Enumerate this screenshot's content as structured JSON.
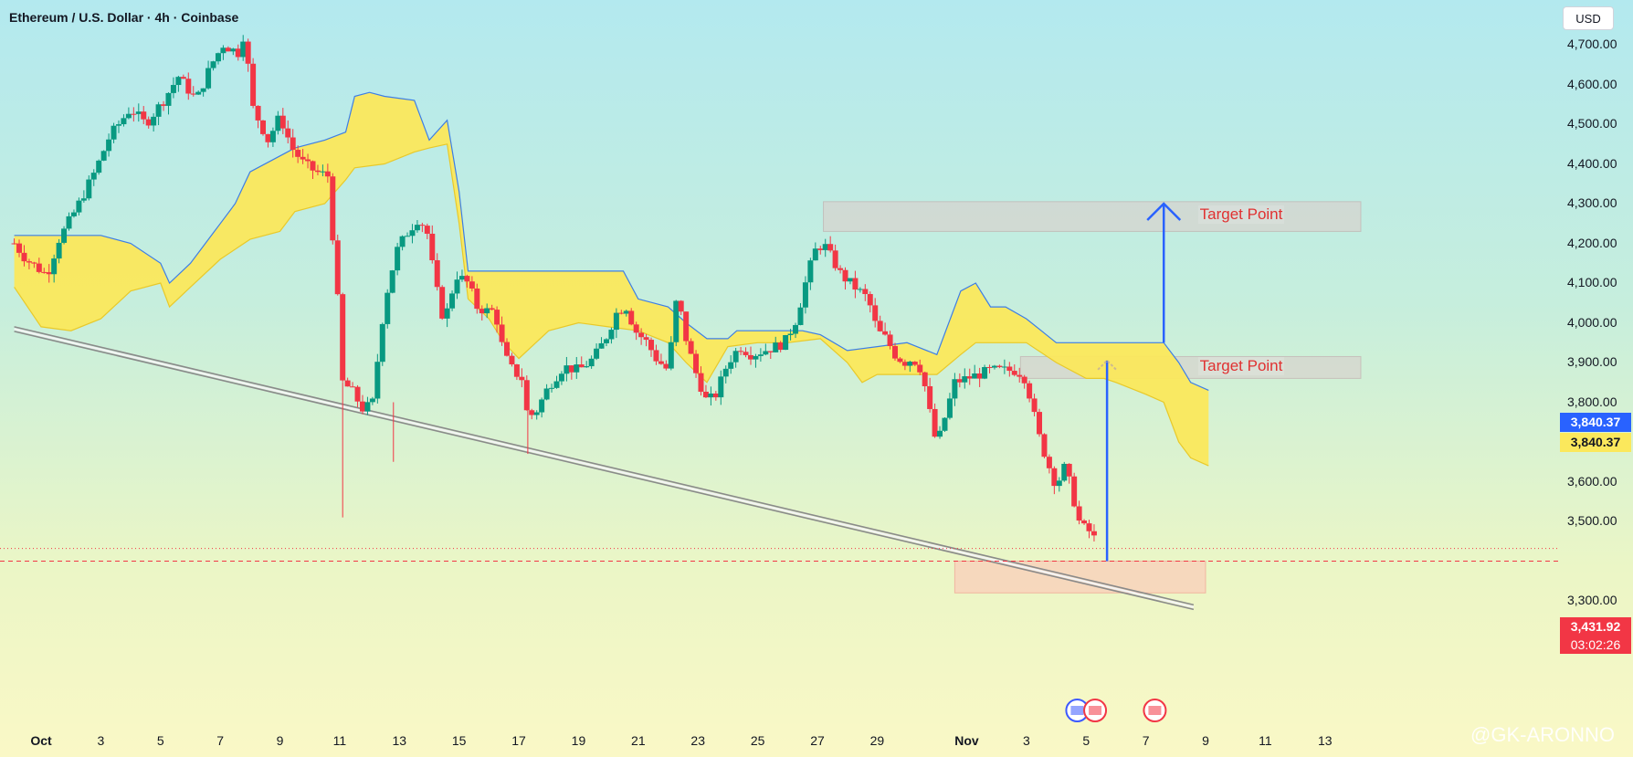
{
  "header": {
    "title": "Ethereum / U.S. Dollar · 4h · Coinbase",
    "currency": "USD"
  },
  "watermark": "@GK-ARONNO",
  "chart_data": {
    "type": "candlestick",
    "symbol": "ETH/USD",
    "interval": "4h",
    "ylim": [
      3220,
      4780
    ],
    "y_ticks": [
      "4,700.00",
      "4,600.00",
      "4,500.00",
      "4,400.00",
      "4,300.00",
      "4,200.00",
      "4,100.00",
      "4,000.00",
      "3,900.00",
      "3,800.00",
      "3,700.00",
      "3,600.00",
      "3,500.00",
      "3,300.00"
    ],
    "x_ticks": [
      "Oct",
      "3",
      "5",
      "7",
      "9",
      "11",
      "13",
      "15",
      "17",
      "19",
      "21",
      "23",
      "25",
      "27",
      "29",
      "Nov",
      "3",
      "5",
      "7",
      "9",
      "11",
      "13"
    ],
    "x_tick_days": [
      1,
      3,
      5,
      7,
      9,
      11,
      13,
      15,
      17,
      19,
      21,
      23,
      25,
      27,
      29,
      32,
      34,
      36,
      38,
      40,
      42,
      44
    ],
    "x_range_days": [
      0.1,
      45.2
    ],
    "price_path": [
      [
        0.1,
        4200
      ],
      [
        0.5,
        4160
      ],
      [
        1.2,
        4120
      ],
      [
        1.6,
        4210
      ],
      [
        2.2,
        4290
      ],
      [
        2.8,
        4380
      ],
      [
        3.3,
        4470
      ],
      [
        4.0,
        4540
      ],
      [
        4.5,
        4500
      ],
      [
        5.1,
        4560
      ],
      [
        5.6,
        4620
      ],
      [
        6.2,
        4560
      ],
      [
        6.7,
        4650
      ],
      [
        7.1,
        4700
      ],
      [
        7.6,
        4680
      ],
      [
        7.8,
        4730
      ],
      [
        8.1,
        4540
      ],
      [
        8.6,
        4460
      ],
      [
        9.0,
        4520
      ],
      [
        9.4,
        4440
      ],
      [
        9.8,
        4400
      ],
      [
        10.2,
        4380
      ],
      [
        10.6,
        4370
      ],
      [
        10.9,
        4100
      ],
      [
        11.1,
        3850
      ],
      [
        11.4,
        3830
      ],
      [
        11.8,
        3780
      ],
      [
        12.1,
        3800
      ],
      [
        12.5,
        4050
      ],
      [
        12.9,
        4180
      ],
      [
        13.2,
        4220
      ],
      [
        13.6,
        4260
      ],
      [
        13.9,
        4240
      ],
      [
        14.2,
        4100
      ],
      [
        14.5,
        4000
      ],
      [
        14.9,
        4120
      ],
      [
        15.3,
        4100
      ],
      [
        15.6,
        4040
      ],
      [
        15.9,
        4030
      ],
      [
        16.2,
        4030
      ],
      [
        16.5,
        3920
      ],
      [
        16.8,
        3880
      ],
      [
        17.1,
        3860
      ],
      [
        17.3,
        3760
      ],
      [
        17.6,
        3780
      ],
      [
        18.0,
        3840
      ],
      [
        18.5,
        3890
      ],
      [
        19.0,
        3880
      ],
      [
        19.5,
        3910
      ],
      [
        19.9,
        3960
      ],
      [
        20.3,
        4030
      ],
      [
        20.6,
        4040
      ],
      [
        20.9,
        3980
      ],
      [
        21.3,
        3950
      ],
      [
        21.6,
        3910
      ],
      [
        22.0,
        3880
      ],
      [
        22.3,
        4070
      ],
      [
        22.6,
        3960
      ],
      [
        22.9,
        3880
      ],
      [
        23.3,
        3800
      ],
      [
        23.6,
        3820
      ],
      [
        24.0,
        3900
      ],
      [
        24.4,
        3940
      ],
      [
        24.8,
        3920
      ],
      [
        25.2,
        3930
      ],
      [
        25.6,
        3940
      ],
      [
        25.9,
        3950
      ],
      [
        26.3,
        4010
      ],
      [
        26.6,
        4100
      ],
      [
        26.9,
        4180
      ],
      [
        27.2,
        4200
      ],
      [
        27.5,
        4160
      ],
      [
        27.8,
        4120
      ],
      [
        28.1,
        4100
      ],
      [
        28.4,
        4080
      ],
      [
        28.7,
        4060
      ],
      [
        29.0,
        3980
      ],
      [
        29.3,
        3960
      ],
      [
        29.6,
        3920
      ],
      [
        29.9,
        3900
      ],
      [
        30.2,
        3910
      ],
      [
        30.5,
        3880
      ],
      [
        30.8,
        3760
      ],
      [
        31.0,
        3690
      ],
      [
        31.3,
        3770
      ],
      [
        31.6,
        3850
      ],
      [
        32.0,
        3860
      ],
      [
        32.4,
        3870
      ],
      [
        32.8,
        3880
      ],
      [
        33.2,
        3880
      ],
      [
        33.6,
        3880
      ],
      [
        33.9,
        3870
      ],
      [
        34.1,
        3820
      ],
      [
        34.4,
        3720
      ],
      [
        34.7,
        3650
      ],
      [
        35.0,
        3590
      ],
      [
        35.3,
        3640
      ],
      [
        35.5,
        3580
      ],
      [
        35.8,
        3490
      ],
      [
        36.2,
        3470
      ],
      [
        36.4,
        3431.92
      ]
    ],
    "ichimoku_cloud": {
      "boundary_a": [
        [
          0.1,
          4220
        ],
        [
          1.0,
          4220
        ],
        [
          2.2,
          4220
        ],
        [
          3.0,
          4220
        ],
        [
          4.0,
          4200
        ],
        [
          5.0,
          4150
        ],
        [
          5.3,
          4100
        ],
        [
          6.0,
          4150
        ],
        [
          7.0,
          4250
        ],
        [
          7.5,
          4300
        ],
        [
          8.0,
          4380
        ],
        [
          9.0,
          4420
        ],
        [
          9.5,
          4440
        ],
        [
          10.5,
          4460
        ],
        [
          11.2,
          4480
        ],
        [
          11.5,
          4570
        ],
        [
          12.0,
          4580
        ],
        [
          12.5,
          4570
        ],
        [
          13.5,
          4560
        ],
        [
          14.0,
          4460
        ],
        [
          14.6,
          4510
        ],
        [
          15.0,
          4330
        ],
        [
          15.3,
          4130
        ],
        [
          20.5,
          4130
        ],
        [
          21.0,
          4060
        ],
        [
          22.0,
          4040
        ],
        [
          22.6,
          4000
        ],
        [
          23.3,
          3960
        ],
        [
          24.0,
          3960
        ],
        [
          24.3,
          3980
        ],
        [
          26.0,
          3980
        ],
        [
          26.5,
          3980
        ],
        [
          27.1,
          3970
        ],
        [
          28.0,
          3930
        ],
        [
          29.0,
          3940
        ],
        [
          30.0,
          3950
        ],
        [
          31.0,
          3920
        ],
        [
          31.8,
          4080
        ],
        [
          32.3,
          4100
        ],
        [
          32.8,
          4040
        ],
        [
          33.3,
          4040
        ],
        [
          34.0,
          4010
        ],
        [
          35.0,
          3950
        ],
        [
          36.0,
          3950
        ],
        [
          37.0,
          3950
        ],
        [
          38.6,
          3950
        ],
        [
          39.1,
          3900
        ],
        [
          39.5,
          3850
        ],
        [
          40.1,
          3830
        ]
      ],
      "boundary_b": [
        [
          0.1,
          4090
        ],
        [
          1.0,
          3990
        ],
        [
          2.0,
          3980
        ],
        [
          3.0,
          4010
        ],
        [
          4.0,
          4080
        ],
        [
          5.0,
          4100
        ],
        [
          5.3,
          4040
        ],
        [
          6.0,
          4090
        ],
        [
          7.0,
          4160
        ],
        [
          8.0,
          4210
        ],
        [
          9.0,
          4230
        ],
        [
          9.5,
          4280
        ],
        [
          10.5,
          4300
        ],
        [
          11.2,
          4360
        ],
        [
          11.5,
          4390
        ],
        [
          12.5,
          4400
        ],
        [
          13.5,
          4430
        ],
        [
          14.0,
          4440
        ],
        [
          14.6,
          4450
        ],
        [
          15.0,
          4250
        ],
        [
          15.3,
          4060
        ],
        [
          16.0,
          4010
        ],
        [
          16.5,
          3950
        ],
        [
          17.0,
          3910
        ],
        [
          18.0,
          3980
        ],
        [
          19.0,
          4000
        ],
        [
          20.0,
          3990
        ],
        [
          21.0,
          3980
        ],
        [
          22.0,
          3950
        ],
        [
          22.6,
          3900
        ],
        [
          23.3,
          3850
        ],
        [
          24.0,
          3940
        ],
        [
          25.0,
          3950
        ],
        [
          26.0,
          3950
        ],
        [
          27.1,
          3960
        ],
        [
          28.0,
          3900
        ],
        [
          28.5,
          3850
        ],
        [
          29.0,
          3870
        ],
        [
          30.0,
          3870
        ],
        [
          31.0,
          3870
        ],
        [
          31.8,
          3920
        ],
        [
          32.3,
          3950
        ],
        [
          33.0,
          3950
        ],
        [
          34.0,
          3950
        ],
        [
          35.0,
          3900
        ],
        [
          36.0,
          3860
        ],
        [
          36.6,
          3860
        ],
        [
          37.0,
          3850
        ],
        [
          38.0,
          3820
        ],
        [
          38.6,
          3800
        ],
        [
          39.1,
          3700
        ],
        [
          39.5,
          3660
        ],
        [
          40.1,
          3640
        ]
      ]
    },
    "trendline": {
      "from": [
        0.1,
        3990
      ],
      "to": [
        39.6,
        3290
      ]
    },
    "zones": [
      {
        "label": "target_upper",
        "x": [
          27.2,
          45.2
        ],
        "y": [
          4230,
          4305
        ]
      },
      {
        "label": "target_lower",
        "x": [
          33.8,
          45.2
        ],
        "y": [
          3860,
          3915
        ]
      },
      {
        "label": "support",
        "x": [
          31.6,
          40.0
        ],
        "y": [
          3320,
          3400
        ]
      }
    ],
    "arrows": [
      {
        "direction": "up",
        "x": 38.6,
        "from": 3950,
        "to": 4300
      },
      {
        "direction": "up",
        "x": 36.7,
        "from": 3400,
        "to": 3905
      }
    ],
    "annotations": [
      {
        "text": "Target Point",
        "x": 39.5,
        "y": 4268
      },
      {
        "text": "Target Point",
        "x": 39.5,
        "y": 3887
      }
    ],
    "price_lines": [
      {
        "label": "current",
        "value": 3431.92,
        "style": "dotted",
        "color": "#f23645"
      },
      {
        "label": "support_level",
        "value": 3400,
        "style": "dashed",
        "color": "#f23645"
      }
    ],
    "price_tags": {
      "cloud_a_value": "3,840.37",
      "cloud_b_value": "3,840.37",
      "last_price": "3,431.92",
      "countdown": "03:02:26"
    },
    "colors": {
      "up": "#089981",
      "down": "#f23645",
      "cloud_bull": "#7fd9e0",
      "cloud_bear": "#fbe85c",
      "cloud_line": "#3d7ee6",
      "arrow": "#2962ff"
    }
  }
}
